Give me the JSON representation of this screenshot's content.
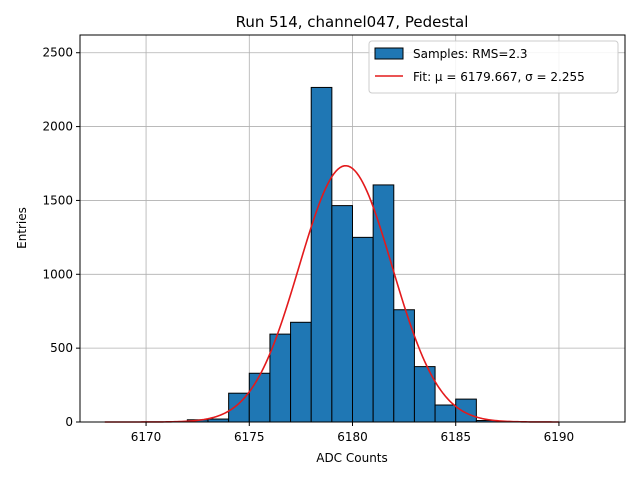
{
  "chart_data": {
    "type": "bar",
    "title": "Run 514, channel047, Pedestal",
    "xlabel": "ADC Counts",
    "ylabel": "Entries",
    "xlim": [
      6166.8,
      6193.2
    ],
    "ylim": [
      0,
      2620
    ],
    "grid": true,
    "legend_position": "top-right",
    "colors": {
      "bars": "#1f77b4",
      "bar_edge": "#000000",
      "fit": "#e31a1c",
      "grid": "#b0b0b0"
    },
    "x_ticks": [
      6170,
      6175,
      6180,
      6185,
      6190
    ],
    "y_ticks": [
      0,
      500,
      1000,
      1500,
      2000,
      2500
    ],
    "histogram": {
      "name": "Samples: RMS=2.3",
      "bin_width": 1,
      "bins": [
        {
          "x0": 6172,
          "x1": 6173,
          "count": 15
        },
        {
          "x0": 6173,
          "x1": 6174,
          "count": 20
        },
        {
          "x0": 6174,
          "x1": 6175,
          "count": 195
        },
        {
          "x0": 6175,
          "x1": 6176,
          "count": 330
        },
        {
          "x0": 6176,
          "x1": 6177,
          "count": 595
        },
        {
          "x0": 6177,
          "x1": 6178,
          "count": 675
        },
        {
          "x0": 6178,
          "x1": 6179,
          "count": 2265
        },
        {
          "x0": 6179,
          "x1": 6180,
          "count": 1465
        },
        {
          "x0": 6180,
          "x1": 6181,
          "count": 1250
        },
        {
          "x0": 6181,
          "x1": 6182,
          "count": 1605
        },
        {
          "x0": 6182,
          "x1": 6183,
          "count": 760
        },
        {
          "x0": 6183,
          "x1": 6184,
          "count": 375
        },
        {
          "x0": 6184,
          "x1": 6185,
          "count": 115
        },
        {
          "x0": 6185,
          "x1": 6186,
          "count": 155
        },
        {
          "x0": 6186,
          "x1": 6187,
          "count": 10
        }
      ]
    },
    "fit": {
      "name": "Fit: μ = 6179.667, σ = 2.255",
      "mu": 6179.667,
      "sigma": 2.255,
      "peak": 1735,
      "x_range": [
        6168,
        6190
      ]
    }
  }
}
